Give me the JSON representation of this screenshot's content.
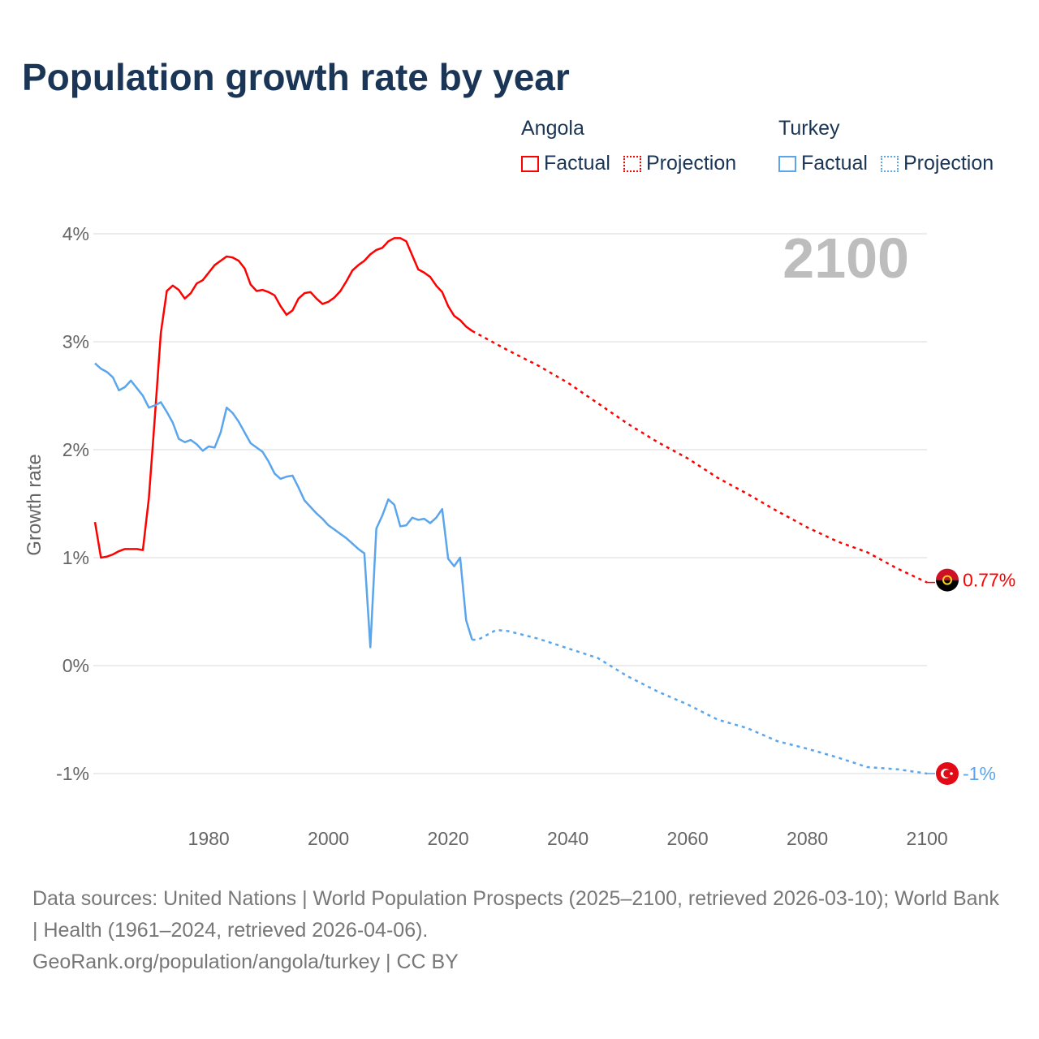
{
  "title": "Population growth rate by year",
  "legend": [
    {
      "country": "Angola",
      "color": "#ff0000",
      "factual": "Factual",
      "projection": "Projection"
    },
    {
      "country": "Turkey",
      "color": "#5aa5ec",
      "factual": "Factual",
      "projection": "Projection"
    }
  ],
  "footer": {
    "sources": "Data sources: United Nations | World Population Prospects (2025–2100, retrieved 2026-03-10); World Bank | Health (1961–2024, retrieved 2026-04-06).",
    "link": "GeoRank.org/population/angola/turkey | CC BY"
  },
  "chart_data": {
    "type": "line",
    "title": "Population growth rate by year",
    "ylabel": "Growth rate",
    "year_label": "2100",
    "ylim": [
      -1.5,
      4.1
    ],
    "xlim": [
      1961,
      2100
    ],
    "xticks": [
      1980,
      2000,
      2020,
      2040,
      2060,
      2080,
      2100
    ],
    "xtick_labels": [
      "1980",
      "2000",
      "2020",
      "2040",
      "2060",
      "2080",
      "2100"
    ],
    "yticks": [
      4,
      3,
      2,
      1,
      0,
      -1
    ],
    "ytick_labels": [
      "4%",
      "3%",
      "2%",
      "1%",
      "0%",
      "-1%"
    ],
    "grid": true,
    "series": [
      {
        "name": "Angola",
        "color": "#ff0000",
        "end_label": "0.77%",
        "factual": {
          "x": [
            1961,
            1962,
            1963,
            1964,
            1965,
            1966,
            1967,
            1968,
            1969,
            1970,
            1971,
            1972,
            1973,
            1974,
            1975,
            1976,
            1977,
            1978,
            1979,
            1980,
            1981,
            1982,
            1983,
            1984,
            1985,
            1986,
            1987,
            1988,
            1989,
            1990,
            1991,
            1992,
            1993,
            1994,
            1995,
            1996,
            1997,
            1998,
            1999,
            2000,
            2001,
            2002,
            2003,
            2004,
            2005,
            2006,
            2007,
            2008,
            2009,
            2010,
            2011,
            2012,
            2013,
            2014,
            2015,
            2016,
            2017,
            2018,
            2019,
            2020,
            2021,
            2022,
            2023,
            2024
          ],
          "y": [
            1.33,
            1.0,
            1.01,
            1.03,
            1.06,
            1.08,
            1.08,
            1.08,
            1.07,
            1.55,
            2.3,
            3.08,
            3.47,
            3.52,
            3.48,
            3.4,
            3.45,
            3.54,
            3.57,
            3.64,
            3.71,
            3.75,
            3.79,
            3.78,
            3.75,
            3.68,
            3.53,
            3.47,
            3.48,
            3.46,
            3.43,
            3.33,
            3.25,
            3.29,
            3.4,
            3.45,
            3.46,
            3.4,
            3.35,
            3.37,
            3.41,
            3.47,
            3.56,
            3.66,
            3.71,
            3.75,
            3.81,
            3.85,
            3.87,
            3.93,
            3.96,
            3.96,
            3.93,
            3.8,
            3.67,
            3.64,
            3.6,
            3.52,
            3.46,
            3.33,
            3.24,
            3.2,
            3.14,
            3.1
          ]
        },
        "projection": {
          "x": [
            2024,
            2025,
            2030,
            2035,
            2040,
            2045,
            2050,
            2055,
            2060,
            2065,
            2070,
            2075,
            2080,
            2085,
            2090,
            2095,
            2100
          ],
          "y": [
            3.1,
            3.07,
            2.92,
            2.78,
            2.62,
            2.43,
            2.24,
            2.07,
            1.92,
            1.74,
            1.59,
            1.43,
            1.28,
            1.15,
            1.05,
            0.9,
            0.77
          ]
        }
      },
      {
        "name": "Turkey",
        "color": "#5aa5ec",
        "end_label": "-1%",
        "factual": {
          "x": [
            1961,
            1962,
            1963,
            1964,
            1965,
            1966,
            1967,
            1968,
            1969,
            1970,
            1971,
            1972,
            1973,
            1974,
            1975,
            1976,
            1977,
            1978,
            1979,
            1980,
            1981,
            1982,
            1983,
            1984,
            1985,
            1986,
            1987,
            1988,
            1989,
            1990,
            1991,
            1992,
            1993,
            1994,
            1995,
            1996,
            1997,
            1998,
            1999,
            2000,
            2001,
            2002,
            2003,
            2004,
            2005,
            2006,
            2007,
            2008,
            2009,
            2010,
            2011,
            2012,
            2013,
            2014,
            2015,
            2016,
            2017,
            2018,
            2019,
            2020,
            2021,
            2022,
            2023,
            2024
          ],
          "y": [
            2.8,
            2.75,
            2.72,
            2.67,
            2.55,
            2.58,
            2.64,
            2.57,
            2.5,
            2.39,
            2.41,
            2.44,
            2.35,
            2.25,
            2.1,
            2.07,
            2.09,
            2.05,
            1.99,
            2.03,
            2.02,
            2.16,
            2.39,
            2.34,
            2.26,
            2.16,
            2.06,
            2.02,
            1.98,
            1.89,
            1.78,
            1.73,
            1.75,
            1.76,
            1.65,
            1.53,
            1.47,
            1.41,
            1.36,
            1.3,
            1.26,
            1.22,
            1.18,
            1.13,
            1.08,
            1.04,
            0.17,
            1.27,
            1.39,
            1.54,
            1.49,
            1.29,
            1.3,
            1.37,
            1.35,
            1.36,
            1.32,
            1.37,
            1.45,
            0.99,
            0.92,
            1.0,
            0.42,
            0.24
          ]
        },
        "projection": {
          "x": [
            2024,
            2025,
            2028,
            2030,
            2035,
            2040,
            2045,
            2050,
            2055,
            2060,
            2065,
            2070,
            2075,
            2080,
            2085,
            2090,
            2095,
            2100
          ],
          "y": [
            0.24,
            0.24,
            0.33,
            0.32,
            0.25,
            0.16,
            0.07,
            -0.1,
            -0.24,
            -0.36,
            -0.5,
            -0.58,
            -0.7,
            -0.77,
            -0.85,
            -0.94,
            -0.96,
            -1.0
          ]
        }
      }
    ]
  }
}
